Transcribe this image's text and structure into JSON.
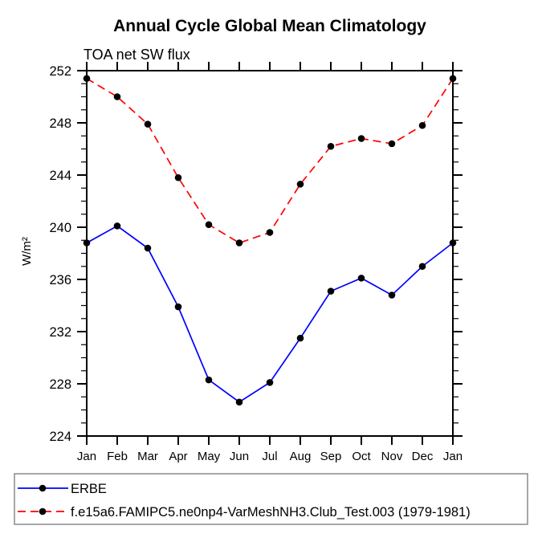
{
  "title": "Annual Cycle Global Mean Climatology",
  "subtitle": "TOA net SW flux",
  "chart_data": {
    "type": "line",
    "title": "Annual Cycle Global Mean Climatology",
    "subtitle": "TOA net SW flux",
    "xlabel": "",
    "ylabel": "W/m²",
    "categories": [
      "Jan",
      "Feb",
      "Mar",
      "Apr",
      "May",
      "Jun",
      "Jul",
      "Aug",
      "Sep",
      "Oct",
      "Nov",
      "Dec",
      "Jan"
    ],
    "series": [
      {
        "name": "ERBE",
        "color": "#0000ff",
        "line_style": "solid",
        "marker": "black-dot",
        "values": [
          238.8,
          240.1,
          238.4,
          233.9,
          228.3,
          226.6,
          228.1,
          231.5,
          235.1,
          236.1,
          234.8,
          237.0,
          238.8
        ]
      },
      {
        "name": "f.e15a6.FAMIPC5.ne0np4-VarMeshNH3.Club_Test.003 (1979-1981)",
        "color": "#ff0000",
        "line_style": "dashed",
        "marker": "black-dot",
        "values": [
          251.4,
          250.0,
          247.9,
          243.8,
          240.2,
          238.8,
          239.6,
          243.3,
          246.2,
          246.8,
          246.4,
          247.8,
          251.4
        ]
      }
    ],
    "ylim": [
      224,
      252
    ],
    "ytick_major_step": 4,
    "ytick_minor_step": 1,
    "yticks_labeled": [
      224,
      228,
      232,
      236,
      240,
      244,
      248,
      252
    ],
    "grid": false,
    "legend_position": "bottom-left-box",
    "marker_color": "#000000",
    "frame": "box-with-mirrored-ticks"
  },
  "legend": {
    "items": [
      {
        "label": "ERBE",
        "color": "#0000ff",
        "line_style": "solid"
      },
      {
        "label": "f.e15a6.FAMIPC5.ne0np4-VarMeshNH3.Club_Test.003 (1979-1981)",
        "color": "#ff0000",
        "line_style": "dashed"
      }
    ]
  },
  "colors": {
    "axis": "#000000",
    "marker": "#000000",
    "background": "#ffffff",
    "legend_border": "#8a8a8a"
  }
}
